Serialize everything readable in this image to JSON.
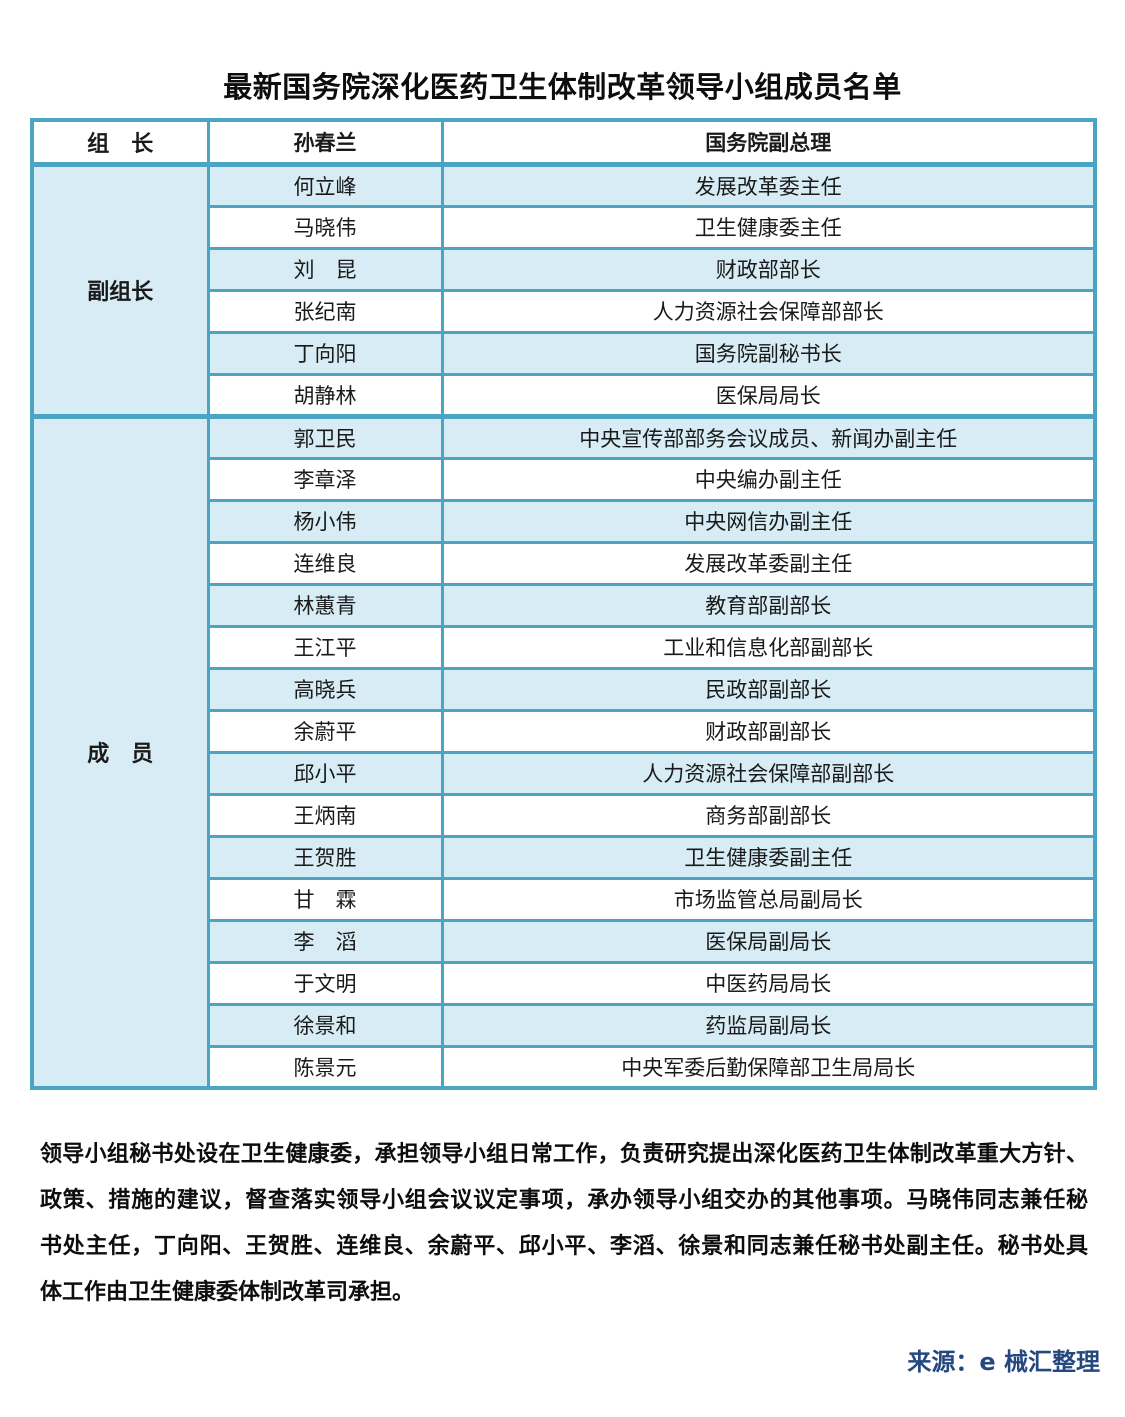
{
  "page": {
    "title": "最新国务院深化医药卫生体制改革领导小组成员名单"
  },
  "table": {
    "header": {
      "label": "组　长",
      "name": "孙春兰",
      "title": "国务院副总理"
    },
    "sections": [
      {
        "label": "副组长",
        "members": [
          {
            "name": "何立峰",
            "title": "发展改革委主任"
          },
          {
            "name": "马晓伟",
            "title": "卫生健康委主任"
          },
          {
            "name": "刘　昆",
            "title": "财政部部长"
          },
          {
            "name": "张纪南",
            "title": "人力资源社会保障部部长"
          },
          {
            "name": "丁向阳",
            "title": "国务院副秘书长"
          },
          {
            "name": "胡静林",
            "title": "医保局局长"
          }
        ]
      },
      {
        "label": "成　员",
        "members": [
          {
            "name": "郭卫民",
            "title": "中央宣传部部务会议成员、新闻办副主任"
          },
          {
            "name": "李章泽",
            "title": "中央编办副主任"
          },
          {
            "name": "杨小伟",
            "title": "中央网信办副主任"
          },
          {
            "name": "连维良",
            "title": "发展改革委副主任"
          },
          {
            "name": "林蕙青",
            "title": "教育部副部长"
          },
          {
            "name": "王江平",
            "title": "工业和信息化部副部长"
          },
          {
            "name": "高晓兵",
            "title": "民政部副部长"
          },
          {
            "name": "余蔚平",
            "title": "财政部副部长"
          },
          {
            "name": "邱小平",
            "title": "人力资源社会保障部副部长"
          },
          {
            "name": "王炳南",
            "title": "商务部副部长"
          },
          {
            "name": "王贺胜",
            "title": "卫生健康委副主任"
          },
          {
            "name": "甘　霖",
            "title": "市场监管总局副局长"
          },
          {
            "name": "李　滔",
            "title": "医保局副局长"
          },
          {
            "name": "于文明",
            "title": "中医药局局长"
          },
          {
            "name": "徐景和",
            "title": "药监局副局长"
          },
          {
            "name": "陈景元",
            "title": "中央军委后勤保障部卫生局局长"
          }
        ]
      }
    ]
  },
  "footer": {
    "lines": [
      "领导小组秘书处设在卫生健康委，承担领导小组日常工作，负责研究提出深化医药卫生体制改革重大方针、",
      "政策、措施的建议，督查落实领导小组会议议定事项，承办领导小组交办的其他事项。马晓伟同志兼任秘",
      "书处主任，丁向阳、王贺胜、连维良、余蔚平、邱小平、李滔、徐景和同志兼任秘书处副主任。秘书处具",
      "体工作由卫生健康委体制改革司承担。"
    ]
  },
  "source": {
    "text": "来源：e 械汇整理"
  },
  "colors": {
    "border": "#4ba4c1",
    "stripe": "#d7ecf4",
    "text": "#1a1a1a",
    "source_text": "#25497f"
  }
}
